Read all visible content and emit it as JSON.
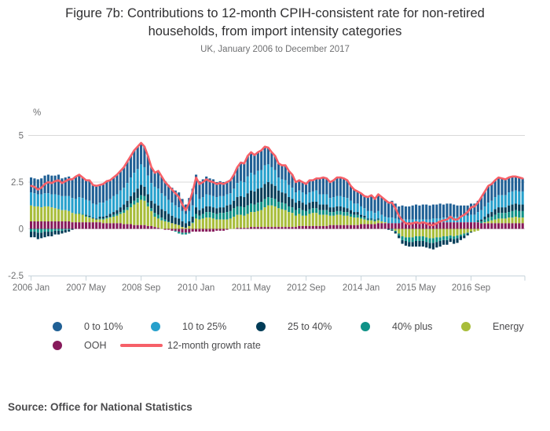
{
  "figure": {
    "title": "Figure 7b: Contributions to 12-month CPIH-consistent rate for non-retired households, from import intensity categories",
    "subtitle": "UK, January 2006 to December 2017",
    "source": "Source: Office for National Statistics",
    "unit_label": "%"
  },
  "chart_data": {
    "type": "bar",
    "stacked": true,
    "x_start": "2006 Jan",
    "x_end": "2017 Dec",
    "months_count": 144,
    "x_tick_labels": [
      "2006 Jan",
      "2007 May",
      "2008 Sep",
      "2010 Jan",
      "2011 May",
      "2012 Sep",
      "2014 Jan",
      "2015 May",
      "2016 Sep"
    ],
    "x_tick_month_index": [
      0,
      16,
      32,
      48,
      64,
      80,
      96,
      112,
      128
    ],
    "ylabel": "%",
    "ylim": [
      -2.5,
      5
    ],
    "yticks": [
      5,
      2.5,
      0,
      -2.5
    ],
    "y_gridlines": [
      5,
      2.5,
      0
    ],
    "grid": true,
    "legend_position": "bottom",
    "stack_order_bottom_to_top": [
      "OOH",
      "Energy",
      "40% plus",
      "25 to 40%",
      "10 to 25%",
      "0 to 10%"
    ],
    "series": [
      {
        "name": "0 to 10%",
        "color": "#206095",
        "values": [
          0.8,
          0.8,
          0.8,
          0.85,
          0.95,
          1.0,
          1.0,
          1.0,
          1.1,
          0.95,
          1.0,
          1.05,
          1.05,
          1.2,
          1.2,
          1.1,
          1.05,
          1.1,
          1.0,
          1.0,
          0.95,
          1.0,
          1.05,
          1.0,
          1.0,
          1.05,
          1.05,
          1.1,
          1.15,
          1.15,
          1.2,
          1.2,
          1.15,
          1.1,
          1.05,
          0.85,
          0.75,
          0.95,
          0.9,
          0.8,
          0.8,
          0.8,
          0.8,
          0.8,
          0.65,
          0.5,
          0.7,
          0.9,
          1.05,
          0.95,
          0.95,
          0.95,
          0.9,
          0.9,
          0.8,
          0.8,
          0.75,
          0.7,
          0.7,
          0.75,
          0.85,
          1.0,
          1.0,
          1.1,
          1.1,
          1.05,
          1.0,
          1.05,
          1.0,
          0.9,
          0.8,
          0.75,
          0.75,
          0.75,
          0.8,
          0.75,
          0.7,
          0.55,
          0.55,
          0.55,
          0.55,
          0.65,
          0.6,
          0.65,
          0.85,
          0.9,
          0.85,
          0.85,
          0.9,
          1.0,
          1.0,
          1.0,
          0.95,
          0.8,
          0.75,
          0.65,
          0.7,
          0.65,
          0.75,
          0.85,
          0.75,
          0.9,
          0.95,
          0.9,
          0.85,
          0.9,
          0.8,
          0.7,
          0.75,
          0.7,
          0.7,
          0.75,
          0.8,
          0.75,
          0.8,
          0.8,
          0.75,
          0.75,
          0.75,
          0.8,
          0.7,
          0.75,
          0.7,
          0.65,
          0.6,
          0.6,
          0.55,
          0.55,
          0.6,
          0.6,
          0.6,
          0.7,
          0.8,
          0.9,
          0.9,
          0.9,
          0.95,
          0.9,
          0.85,
          0.8,
          0.8,
          0.75,
          0.75,
          0.7
        ]
      },
      {
        "name": "10 to 25%",
        "color": "#27a0cc",
        "values": [
          0.7,
          0.7,
          0.65,
          0.7,
          0.7,
          0.7,
          0.7,
          0.75,
          0.75,
          0.75,
          0.75,
          0.8,
          0.8,
          0.8,
          0.85,
          0.85,
          0.8,
          0.8,
          0.75,
          0.75,
          0.75,
          0.75,
          0.8,
          0.8,
          0.85,
          0.85,
          0.9,
          0.9,
          0.95,
          1.0,
          1.05,
          1.05,
          1.1,
          1.05,
          1.0,
          0.95,
          0.9,
          0.9,
          0.85,
          0.8,
          0.75,
          0.7,
          0.65,
          0.6,
          0.55,
          0.5,
          0.55,
          0.6,
          0.7,
          0.6,
          0.6,
          0.65,
          0.6,
          0.6,
          0.6,
          0.6,
          0.6,
          0.6,
          0.6,
          0.65,
          0.75,
          0.8,
          0.8,
          0.9,
          0.95,
          0.9,
          0.95,
          0.95,
          1.0,
          0.95,
          0.9,
          0.85,
          0.7,
          0.7,
          0.7,
          0.65,
          0.6,
          0.55,
          0.55,
          0.55,
          0.55,
          0.55,
          0.55,
          0.6,
          0.55,
          0.55,
          0.55,
          0.5,
          0.55,
          0.55,
          0.55,
          0.55,
          0.55,
          0.5,
          0.45,
          0.45,
          0.45,
          0.4,
          0.4,
          0.4,
          0.35,
          0.4,
          0.35,
          0.3,
          0.3,
          0.3,
          0.25,
          0.2,
          0.15,
          0.15,
          0.15,
          0.15,
          0.15,
          0.15,
          0.15,
          0.15,
          0.15,
          0.2,
          0.2,
          0.2,
          0.25,
          0.25,
          0.3,
          0.3,
          0.3,
          0.3,
          0.35,
          0.35,
          0.4,
          0.4,
          0.45,
          0.5,
          0.55,
          0.6,
          0.6,
          0.65,
          0.65,
          0.65,
          0.65,
          0.7,
          0.7,
          0.7,
          0.7,
          0.7
        ]
      },
      {
        "name": "25 to 40%",
        "color": "#003c57",
        "values": [
          -0.3,
          -0.3,
          -0.35,
          -0.3,
          -0.3,
          -0.25,
          -0.25,
          -0.2,
          -0.2,
          -0.15,
          -0.15,
          -0.1,
          -0.05,
          0,
          0,
          0,
          0.05,
          0.05,
          0.05,
          0.05,
          0.1,
          0.1,
          0.1,
          0.15,
          0.15,
          0.2,
          0.25,
          0.3,
          0.35,
          0.4,
          0.45,
          0.5,
          0.55,
          0.5,
          0.45,
          0.4,
          0.5,
          0.5,
          0.45,
          0.45,
          0.4,
          0.4,
          0.35,
          0.35,
          0.3,
          0.25,
          0.25,
          0.3,
          0.35,
          0.3,
          0.3,
          0.3,
          0.3,
          0.3,
          0.3,
          0.3,
          0.3,
          0.35,
          0.35,
          0.4,
          0.5,
          0.55,
          0.55,
          0.65,
          0.7,
          0.7,
          0.75,
          0.75,
          0.8,
          0.8,
          0.75,
          0.7,
          0.6,
          0.55,
          0.55,
          0.5,
          0.45,
          0.4,
          0.4,
          0.4,
          0.35,
          0.35,
          0.35,
          0.35,
          0.3,
          0.3,
          0.3,
          0.25,
          0.25,
          0.25,
          0.25,
          0.25,
          0.2,
          0.2,
          0.15,
          0.15,
          0.1,
          0.1,
          0.05,
          0.05,
          0.05,
          0.05,
          0,
          0,
          -0.05,
          -0.05,
          -0.1,
          -0.15,
          -0.2,
          -0.25,
          -0.25,
          -0.25,
          -0.3,
          -0.3,
          -0.3,
          -0.3,
          -0.3,
          -0.35,
          -0.3,
          -0.3,
          -0.25,
          -0.25,
          -0.2,
          -0.25,
          -0.25,
          -0.2,
          -0.15,
          -0.1,
          -0.05,
          0,
          0.05,
          0.1,
          0.15,
          0.2,
          0.25,
          0.3,
          0.3,
          0.3,
          0.3,
          0.35,
          0.35,
          0.35,
          0.35,
          0.35
        ]
      },
      {
        "name": "40% plus",
        "color": "#0f9287",
        "values": [
          -0.15,
          -0.15,
          -0.2,
          -0.2,
          -0.15,
          -0.15,
          -0.15,
          -0.1,
          -0.1,
          -0.1,
          -0.05,
          -0.05,
          0,
          0,
          0.05,
          0.05,
          0.05,
          0.05,
          0,
          0,
          0.05,
          0.05,
          0.05,
          0.05,
          0.1,
          0.1,
          0.1,
          0.15,
          0.15,
          0.2,
          0.2,
          0.25,
          0.25,
          0.25,
          0.2,
          0.15,
          0.2,
          0.2,
          0.15,
          0.1,
          0.05,
          0,
          -0.05,
          -0.1,
          -0.1,
          -0.1,
          -0.05,
          0.05,
          0.25,
          0.2,
          0.25,
          0.3,
          0.3,
          0.3,
          0.3,
          0.35,
          0.35,
          0.4,
          0.4,
          0.45,
          0.45,
          0.45,
          0.45,
          0.45,
          0.45,
          0.4,
          0.45,
          0.45,
          0.45,
          0.45,
          0.4,
          0.4,
          0.35,
          0.35,
          0.35,
          0.3,
          0.3,
          0.3,
          0.3,
          0.3,
          0.25,
          0.25,
          0.25,
          0.25,
          0.25,
          0.25,
          0.25,
          0.2,
          0.2,
          0.2,
          0.2,
          0.2,
          0.2,
          0.15,
          0.15,
          0.15,
          0.1,
          0.1,
          0.05,
          0.05,
          0.05,
          0.05,
          0,
          0,
          0,
          -0.05,
          -0.05,
          -0.1,
          -0.2,
          -0.2,
          -0.25,
          -0.25,
          -0.25,
          -0.25,
          -0.25,
          -0.25,
          -0.25,
          -0.25,
          -0.25,
          -0.2,
          -0.2,
          -0.2,
          -0.15,
          -0.15,
          -0.15,
          -0.1,
          -0.1,
          -0.05,
          0,
          0,
          0.05,
          0.1,
          0.15,
          0.2,
          0.2,
          0.25,
          0.3,
          0.3,
          0.3,
          0.3,
          0.35,
          0.35,
          0.35,
          0.35
        ]
      },
      {
        "name": "Energy",
        "color": "#a8bd3a",
        "values": [
          0.85,
          0.8,
          0.8,
          0.75,
          0.8,
          0.8,
          0.75,
          0.7,
          0.65,
          0.6,
          0.6,
          0.55,
          0.5,
          0.45,
          0.45,
          0.4,
          0.3,
          0.25,
          0.2,
          0.15,
          0.15,
          0.2,
          0.25,
          0.3,
          0.35,
          0.4,
          0.5,
          0.6,
          0.75,
          0.9,
          1.1,
          1.2,
          1.35,
          1.3,
          1.05,
          0.8,
          0.55,
          0.5,
          0.45,
          0.4,
          0.35,
          0.3,
          0.25,
          0.2,
          0.1,
          0.05,
          0.15,
          0.3,
          0.55,
          0.5,
          0.55,
          0.6,
          0.6,
          0.55,
          0.5,
          0.5,
          0.5,
          0.5,
          0.55,
          0.65,
          0.7,
          0.7,
          0.65,
          0.75,
          0.8,
          0.8,
          0.85,
          0.9,
          1.05,
          1.15,
          1.15,
          1.1,
          1.0,
          0.95,
          0.9,
          0.8,
          0.75,
          0.6,
          0.65,
          0.55,
          0.55,
          0.65,
          0.7,
          0.7,
          0.6,
          0.6,
          0.6,
          0.5,
          0.5,
          0.55,
          0.55,
          0.5,
          0.5,
          0.45,
          0.4,
          0.4,
          0.3,
          0.25,
          0.2,
          0.2,
          0.15,
          0.15,
          0.1,
          0.05,
          0,
          0,
          -0.1,
          -0.25,
          -0.4,
          -0.45,
          -0.45,
          -0.45,
          -0.4,
          -0.4,
          -0.4,
          -0.45,
          -0.5,
          -0.5,
          -0.45,
          -0.45,
          -0.4,
          -0.4,
          -0.35,
          -0.4,
          -0.35,
          -0.3,
          -0.25,
          -0.2,
          -0.15,
          -0.15,
          -0.1,
          0,
          0.05,
          0.1,
          0.15,
          0.2,
          0.25,
          0.25,
          0.25,
          0.3,
          0.3,
          0.35,
          0.3,
          0.3
        ]
      },
      {
        "name": "OOH",
        "color": "#871a5b",
        "values": [
          0.4,
          0.4,
          0.4,
          0.4,
          0.4,
          0.4,
          0.4,
          0.4,
          0.4,
          0.4,
          0.4,
          0.4,
          0.35,
          0.35,
          0.35,
          0.35,
          0.35,
          0.35,
          0.35,
          0.35,
          0.35,
          0.3,
          0.3,
          0.3,
          0.3,
          0.3,
          0.3,
          0.25,
          0.25,
          0.25,
          0.2,
          0.2,
          0.2,
          0.2,
          0.15,
          0.15,
          0.1,
          0.05,
          0,
          -0.05,
          -0.05,
          -0.1,
          -0.1,
          -0.15,
          -0.2,
          -0.2,
          -0.2,
          -0.15,
          -0.15,
          -0.15,
          -0.15,
          -0.15,
          -0.15,
          -0.15,
          -0.1,
          -0.1,
          -0.1,
          -0.05,
          0,
          0,
          0.05,
          0.05,
          0.05,
          0.05,
          0.1,
          0.1,
          0.1,
          0.1,
          0.1,
          0.1,
          0.1,
          0.1,
          0.1,
          0.1,
          0.1,
          0.1,
          0.1,
          0.1,
          0.15,
          0.15,
          0.15,
          0.15,
          0.15,
          0.15,
          0.15,
          0.15,
          0.15,
          0.2,
          0.2,
          0.2,
          0.2,
          0.2,
          0.2,
          0.2,
          0.2,
          0.2,
          0.25,
          0.25,
          0.25,
          0.25,
          0.25,
          0.3,
          0.3,
          0.3,
          0.3,
          0.3,
          0.3,
          0.3,
          0.35,
          0.35,
          0.35,
          0.35,
          0.35,
          0.35,
          0.35,
          0.35,
          0.35,
          0.35,
          0.35,
          0.35,
          0.35,
          0.35,
          0.35,
          0.35,
          0.35,
          0.35,
          0.35,
          0.35,
          0.35,
          0.35,
          0.35,
          0.3,
          0.3,
          0.3,
          0.3,
          0.3,
          0.3,
          0.3,
          0.3,
          0.3,
          0.3,
          0.3,
          0.3,
          0.3
        ]
      }
    ],
    "line_series": {
      "name": "12-month growth rate",
      "color": "#f66068",
      "values": [
        2.3,
        2.25,
        2.1,
        2.2,
        2.4,
        2.5,
        2.45,
        2.55,
        2.6,
        2.45,
        2.55,
        2.65,
        2.65,
        2.8,
        2.9,
        2.75,
        2.6,
        2.6,
        2.35,
        2.3,
        2.35,
        2.4,
        2.55,
        2.6,
        2.75,
        2.9,
        3.1,
        3.3,
        3.6,
        3.9,
        4.2,
        4.4,
        4.6,
        4.4,
        3.9,
        3.3,
        3.0,
        3.1,
        2.8,
        2.5,
        2.3,
        2.1,
        1.9,
        1.7,
        1.3,
        1.0,
        1.4,
        2.0,
        2.75,
        2.4,
        2.5,
        2.65,
        2.55,
        2.5,
        2.4,
        2.45,
        2.4,
        2.5,
        2.6,
        2.9,
        3.3,
        3.55,
        3.5,
        3.9,
        4.1,
        3.95,
        4.1,
        4.2,
        4.4,
        4.35,
        4.1,
        3.9,
        3.5,
        3.4,
        3.4,
        3.1,
        2.9,
        2.5,
        2.6,
        2.5,
        2.4,
        2.6,
        2.6,
        2.7,
        2.7,
        2.75,
        2.7,
        2.5,
        2.6,
        2.75,
        2.75,
        2.7,
        2.6,
        2.3,
        2.1,
        2.0,
        1.9,
        1.75,
        1.7,
        1.8,
        1.6,
        1.85,
        1.7,
        1.55,
        1.4,
        1.4,
        1.1,
        0.7,
        0.45,
        0.3,
        0.25,
        0.3,
        0.35,
        0.3,
        0.35,
        0.3,
        0.2,
        0.2,
        0.3,
        0.4,
        0.45,
        0.5,
        0.65,
        0.5,
        0.5,
        0.65,
        0.75,
        0.9,
        1.15,
        1.2,
        1.4,
        1.7,
        2.0,
        2.3,
        2.4,
        2.6,
        2.75,
        2.7,
        2.65,
        2.75,
        2.8,
        2.8,
        2.75,
        2.7
      ]
    }
  }
}
